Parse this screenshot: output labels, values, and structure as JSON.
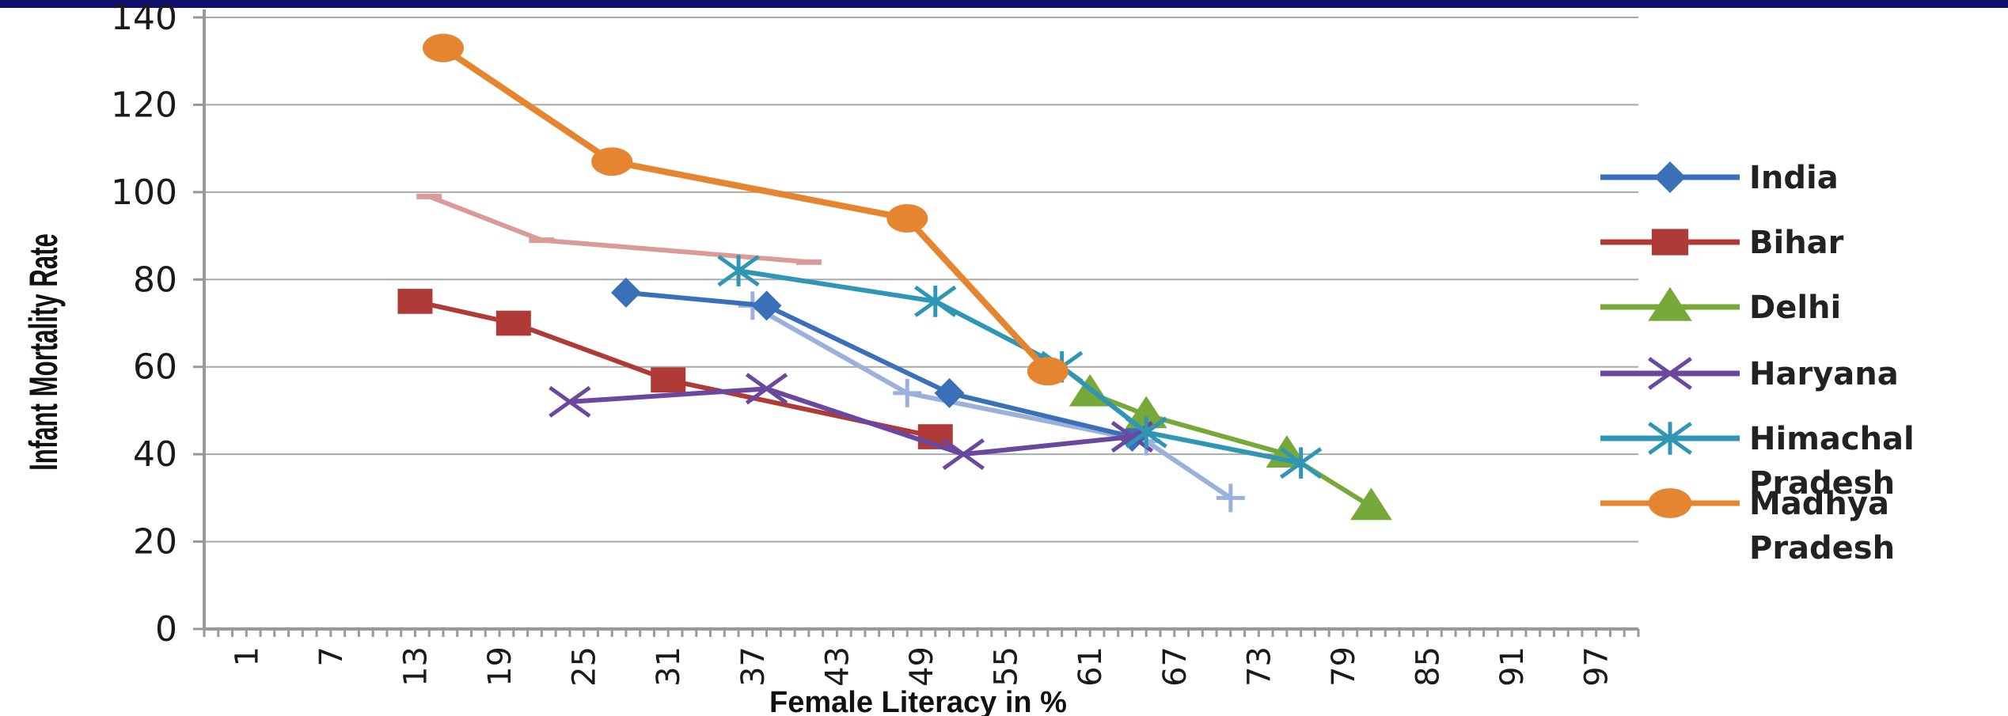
{
  "chart_data": {
    "type": "line",
    "title": "",
    "xlabel": "Female Literacy in %",
    "ylabel": "Infant Mortality Rate",
    "xlim": [
      -2,
      100
    ],
    "ylim": [
      0,
      140
    ],
    "y_ticks": [
      "0",
      "20",
      "40",
      "60",
      "80",
      "100",
      "120",
      "140"
    ],
    "x_ticks": [
      "1",
      "7",
      "13",
      "19",
      "25",
      "31",
      "37",
      "43",
      "49",
      "55",
      "61",
      "67",
      "73",
      "79",
      "85",
      "91",
      "97"
    ],
    "grid": true,
    "legend_position": "right",
    "series": [
      {
        "name": "India",
        "color": "#3a70b8",
        "marker": "diamond",
        "points": [
          [
            28,
            77
          ],
          [
            38,
            74
          ],
          [
            51,
            54
          ],
          [
            64,
            44
          ]
        ]
      },
      {
        "name": "Bihar",
        "color": "#b03a36",
        "marker": "square",
        "points": [
          [
            13,
            75
          ],
          [
            20,
            70
          ],
          [
            31,
            57
          ],
          [
            50,
            44
          ]
        ]
      },
      {
        "name": "Delhi",
        "color": "#76a83a",
        "marker": "triangle",
        "points": [
          [
            61,
            54
          ],
          [
            65,
            49
          ],
          [
            75,
            40
          ],
          [
            81,
            28
          ]
        ]
      },
      {
        "name": "Haryana",
        "color": "#6a48a0",
        "marker": "x",
        "points": [
          [
            24,
            52
          ],
          [
            38,
            55
          ],
          [
            52,
            40
          ],
          [
            64,
            44
          ]
        ]
      },
      {
        "name": "Himachal Pradesh",
        "color": "#2f97b5",
        "marker": "asterisk",
        "points": [
          [
            36,
            82
          ],
          [
            50,
            75
          ],
          [
            59,
            60
          ],
          [
            65,
            45
          ],
          [
            76,
            38
          ]
        ]
      },
      {
        "name": "Madhya Pradesh",
        "color": "#e58530",
        "marker": "circle",
        "points": [
          [
            15,
            133
          ],
          [
            27,
            107
          ],
          [
            48,
            94
          ],
          [
            58,
            59
          ]
        ]
      },
      {
        "name": "",
        "color": "#d99a98",
        "marker": "dash",
        "points": [
          [
            14,
            99
          ],
          [
            22,
            89
          ],
          [
            41,
            84
          ]
        ]
      },
      {
        "name": "",
        "color": "#9bb0da",
        "marker": "plus",
        "points": [
          [
            37,
            74
          ],
          [
            48,
            54
          ],
          [
            65,
            43
          ],
          [
            71,
            30
          ]
        ]
      }
    ]
  }
}
